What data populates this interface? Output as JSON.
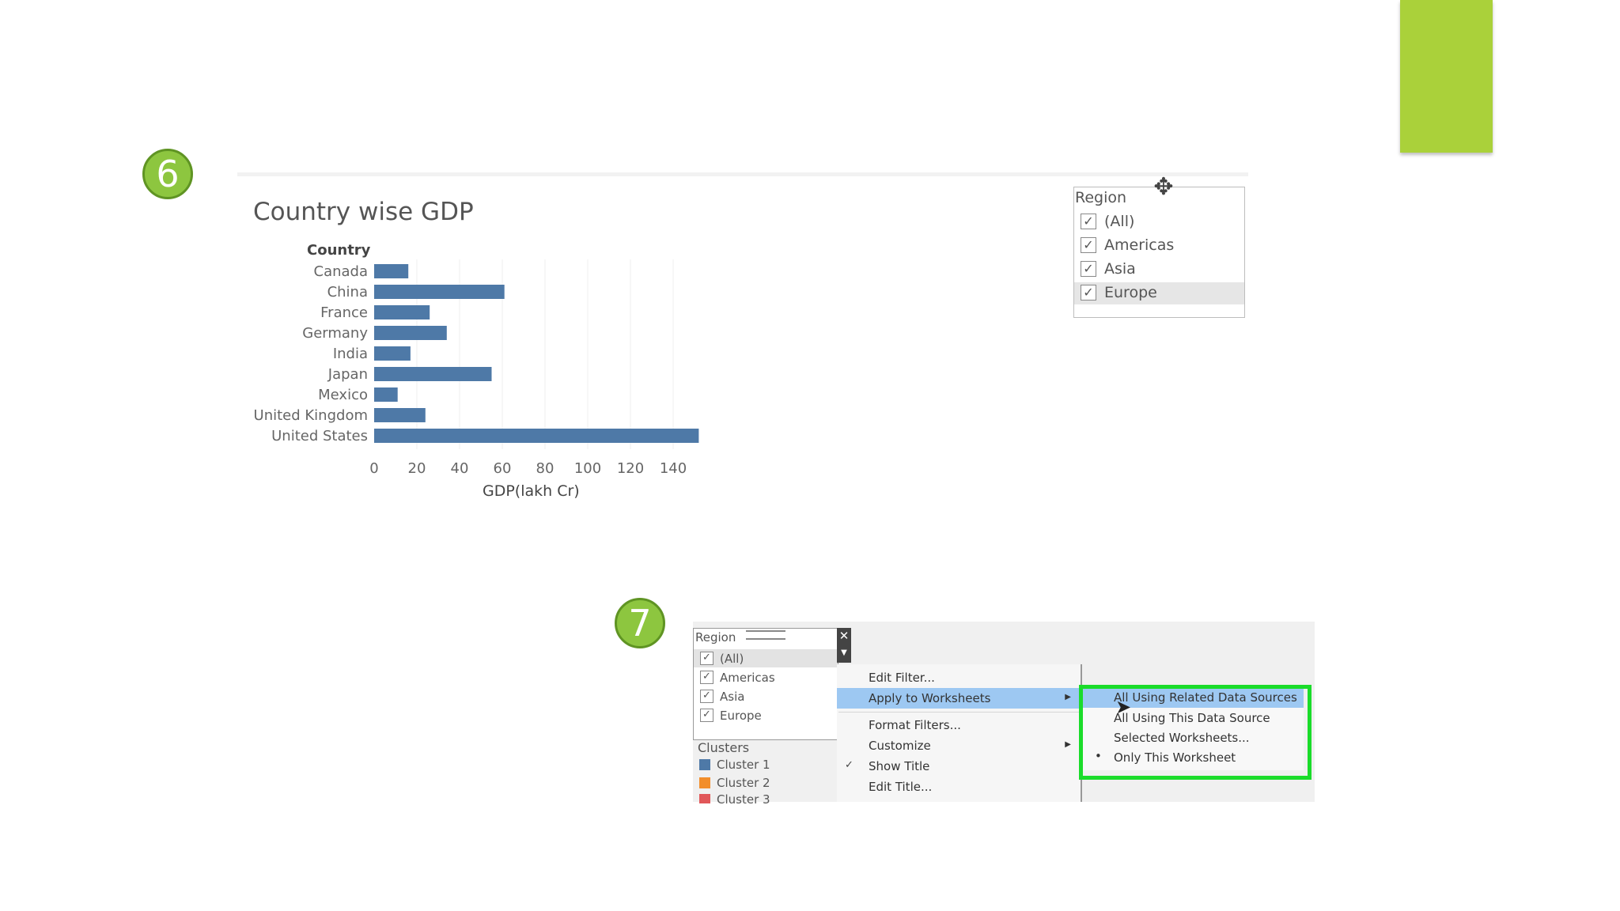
{
  "steps": {
    "six": "6",
    "seven": "7"
  },
  "icons": {
    "move": "move-cursor-icon",
    "pointer": "mouse-pointer-icon",
    "close": "close-icon",
    "dropdown": "dropdown-arrow-icon"
  },
  "chart_data": {
    "type": "bar",
    "orientation": "horizontal",
    "title": "Country wise GDP",
    "ylabel": "Country",
    "xlabel": "GDP(lakh Cr)",
    "categories": [
      "Canada",
      "China",
      "France",
      "Germany",
      "India",
      "Japan",
      "Mexico",
      "United Kingdom",
      "United States"
    ],
    "values": [
      16,
      61,
      26,
      34,
      17,
      55,
      11,
      24,
      152
    ],
    "xlim": [
      0,
      150
    ],
    "xticks": [
      0,
      20,
      40,
      60,
      80,
      100,
      120,
      140
    ],
    "color": "#4e79a7",
    "grid": "vertical"
  },
  "region_filter": {
    "title": "Region",
    "items": [
      {
        "label": "(All)",
        "checked": true
      },
      {
        "label": "Americas",
        "checked": true
      },
      {
        "label": "Asia",
        "checked": true
      },
      {
        "label": "Europe",
        "checked": true
      }
    ]
  },
  "bottom": {
    "region": {
      "title": "Region",
      "items": [
        {
          "label": "(All)"
        },
        {
          "label": "Americas"
        },
        {
          "label": "Asia"
        },
        {
          "label": "Europe"
        }
      ]
    },
    "clusters": {
      "title": "Clusters",
      "items": [
        {
          "label": "Cluster 1",
          "color": "#4e79a7"
        },
        {
          "label": "Cluster 2",
          "color": "#f28e2b"
        },
        {
          "label": "Cluster 3",
          "color": "#e15759"
        }
      ]
    },
    "menu": {
      "items": [
        {
          "label": "Edit Filter..."
        },
        {
          "label": "Apply to Worksheets"
        },
        {
          "label": "Format Filters..."
        },
        {
          "label": "Customize"
        },
        {
          "label": "Show Title"
        },
        {
          "label": "Edit Title..."
        }
      ]
    },
    "submenu": {
      "items": [
        {
          "label": "All Using Related Data Sources"
        },
        {
          "label": "All Using This Data Source"
        },
        {
          "label": "Selected Worksheets..."
        },
        {
          "label": "Only This Worksheet"
        }
      ]
    }
  }
}
